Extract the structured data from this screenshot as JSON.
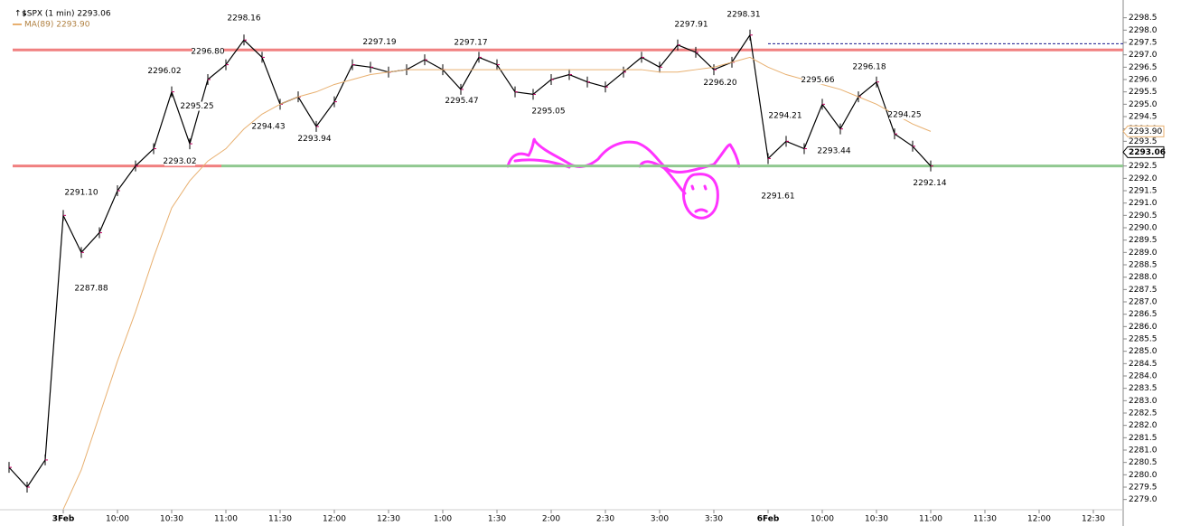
{
  "chart_data": {
    "type": "line",
    "title": "$SPX (1 min) 2293.06",
    "categories": [
      null,
      null,
      null,
      "3Feb",
      null,
      null,
      "10:00",
      null,
      null,
      "10:30",
      null,
      null,
      "11:00",
      null,
      null,
      "11:30",
      null,
      null,
      "12:00",
      null,
      null,
      "12:30",
      null,
      null,
      "1:00",
      null,
      null,
      "1:30",
      null,
      null,
      "2:00",
      null,
      null,
      "2:30",
      null,
      null,
      "3:00",
      null,
      null,
      "3:30",
      null,
      null,
      "6Feb",
      null,
      null,
      "10:00",
      null,
      null,
      "10:30",
      null,
      null,
      "11:00",
      null,
      null,
      "11:30",
      null,
      null,
      "12:00",
      null,
      null,
      "12:30",
      null
    ],
    "series": [
      {
        "name": "$SPX (1 min)",
        "color": "#000000",
        "values": [
          2280.3,
          2279.5,
          2280.6,
          2290.5,
          2289.0,
          2289.8,
          2291.5,
          2292.5,
          2293.2,
          2295.5,
          2293.4,
          2296.0,
          2296.6,
          2297.6,
          2296.9,
          2295.0,
          2295.3,
          2294.1,
          2295.1,
          2296.6,
          2296.5,
          2296.3,
          2296.4,
          2296.8,
          2296.4,
          2295.6,
          2296.9,
          2296.6,
          2295.5,
          2295.4,
          2296.0,
          2296.2,
          2295.9,
          2295.7,
          2296.3,
          2296.9,
          2296.5,
          2297.4,
          2297.1,
          2296.4,
          2296.7,
          2297.8,
          2292.8,
          2293.5,
          2293.2,
          2295.0,
          2294.0,
          2295.3,
          2295.9,
          2293.8,
          2293.3,
          2292.5,
          null,
          null,
          null,
          null,
          null,
          null,
          null,
          null,
          null,
          null
        ]
      },
      {
        "name": "MA(89) 2293.90",
        "color": "#e8b070",
        "values": [
          null,
          null,
          null,
          2278.6,
          2280.2,
          2282.4,
          2284.6,
          2286.6,
          2288.8,
          2290.8,
          2291.9,
          2292.7,
          2293.2,
          2294.0,
          2294.6,
          2295.0,
          2295.3,
          2295.5,
          2295.8,
          2296.0,
          2296.2,
          2296.3,
          2296.4,
          2296.4,
          2296.4,
          2296.4,
          2296.4,
          2296.4,
          2296.4,
          2296.4,
          2296.4,
          2296.4,
          2296.4,
          2296.4,
          2296.4,
          2296.4,
          2296.3,
          2296.3,
          2296.4,
          2296.5,
          2296.7,
          2296.9,
          2296.5,
          2296.2,
          2296.0,
          2295.8,
          2295.6,
          2295.3,
          2295.0,
          2294.6,
          2294.2,
          2293.9,
          null,
          null,
          null,
          null,
          null,
          null,
          null,
          null,
          null,
          null
        ]
      }
    ],
    "ylim": [
      2278,
      2299
    ],
    "yticks": [
      {
        "value": 2279,
        "label": "2279.0"
      },
      {
        "value": 2279.5,
        "label": "2279.5"
      },
      {
        "value": 2280,
        "label": "2280.0"
      },
      {
        "value": 2280.5,
        "label": "2280.5"
      },
      {
        "value": 2281,
        "label": "2281.0"
      },
      {
        "value": 2281.5,
        "label": "2281.5"
      },
      {
        "value": 2282,
        "label": "2282.0"
      },
      {
        "value": 2282.5,
        "label": "2282.5"
      },
      {
        "value": 2283,
        "label": "2283.0"
      },
      {
        "value": 2283.5,
        "label": "2283.5"
      },
      {
        "value": 2284,
        "label": "2284.0"
      },
      {
        "value": 2284.5,
        "label": "2284.5"
      },
      {
        "value": 2285,
        "label": "2285.0"
      },
      {
        "value": 2285.5,
        "label": "2285.5"
      },
      {
        "value": 2286,
        "label": "2286.0"
      },
      {
        "value": 2286.5,
        "label": "2286.5"
      },
      {
        "value": 2287,
        "label": "2287.0"
      },
      {
        "value": 2287.5,
        "label": "2287.5"
      },
      {
        "value": 2288,
        "label": "2288.0"
      },
      {
        "value": 2288.5,
        "label": "2288.5"
      },
      {
        "value": 2289,
        "label": "2289.0"
      },
      {
        "value": 2289.5,
        "label": "2289.5"
      },
      {
        "value": 2290,
        "label": "2290.0"
      },
      {
        "value": 2290.5,
        "label": "2290.5"
      },
      {
        "value": 2291,
        "label": "2291.0"
      },
      {
        "value": 2291.5,
        "label": "2291.5"
      },
      {
        "value": 2292,
        "label": "2292.0"
      },
      {
        "value": 2292.5,
        "label": "2292.5"
      },
      {
        "value": 2293,
        "label": "2293.0"
      },
      {
        "value": 2293.5,
        "label": "2293.5"
      },
      {
        "value": 2294,
        "label": "2294.0"
      },
      {
        "value": 2294.5,
        "label": "2294.5"
      },
      {
        "value": 2295,
        "label": "2295.0"
      },
      {
        "value": 2295.5,
        "label": "2295.5"
      },
      {
        "value": 2296,
        "label": "2296.0"
      },
      {
        "value": 2296.5,
        "label": "2296.5"
      },
      {
        "value": 2297,
        "label": "2297.0"
      },
      {
        "value": 2297.5,
        "label": "2297.5"
      },
      {
        "value": 2298,
        "label": "2298.0"
      },
      {
        "value": 2298.5,
        "label": "2298.5"
      }
    ],
    "levels": [
      {
        "value": 2297.2,
        "color": "#f08080"
      },
      {
        "value": 2292.5,
        "color": "#90c890"
      },
      {
        "value": 2297.45,
        "color": "#1a1a8c"
      }
    ],
    "annotations": [
      {
        "value": 2298.16,
        "label": "2298.16"
      },
      {
        "value": 2296.8,
        "label": "2296.80"
      },
      {
        "value": 2296.02,
        "label": "2296.02"
      },
      {
        "value": 2295.25,
        "label": "2295.25"
      },
      {
        "value": 2294.43,
        "label": "2294.43"
      },
      {
        "value": 2293.94,
        "label": "2293.94"
      },
      {
        "value": 2297.19,
        "label": "2297.19"
      },
      {
        "value": 2297.17,
        "label": "2297.17"
      },
      {
        "value": 2295.47,
        "label": "2295.47"
      },
      {
        "value": 2295.05,
        "label": "2295.05"
      },
      {
        "value": 2297.91,
        "label": "2297.91"
      },
      {
        "value": 2298.31,
        "label": "2298.31"
      },
      {
        "value": 2296.2,
        "label": "2296.20"
      },
      {
        "value": 2293.02,
        "label": "2293.02"
      },
      {
        "value": 2291.1,
        "label": "2291.10"
      },
      {
        "value": 2287.88,
        "label": "2287.88"
      },
      {
        "value": 2294.21,
        "label": "2294.21"
      },
      {
        "value": 2291.61,
        "label": "2291.61"
      },
      {
        "value": 2295.66,
        "label": "2295.66"
      },
      {
        "value": 2293.44,
        "label": "2293.44"
      },
      {
        "value": 2296.18,
        "label": "2296.18"
      },
      {
        "value": 2294.25,
        "label": "2294.25"
      },
      {
        "value": 2292.14,
        "label": "2292.14"
      }
    ],
    "last_price": {
      "value": 2293.06,
      "label": "2293.06"
    },
    "ma_last": {
      "value": 2293.9,
      "label": "2293.90"
    }
  }
}
